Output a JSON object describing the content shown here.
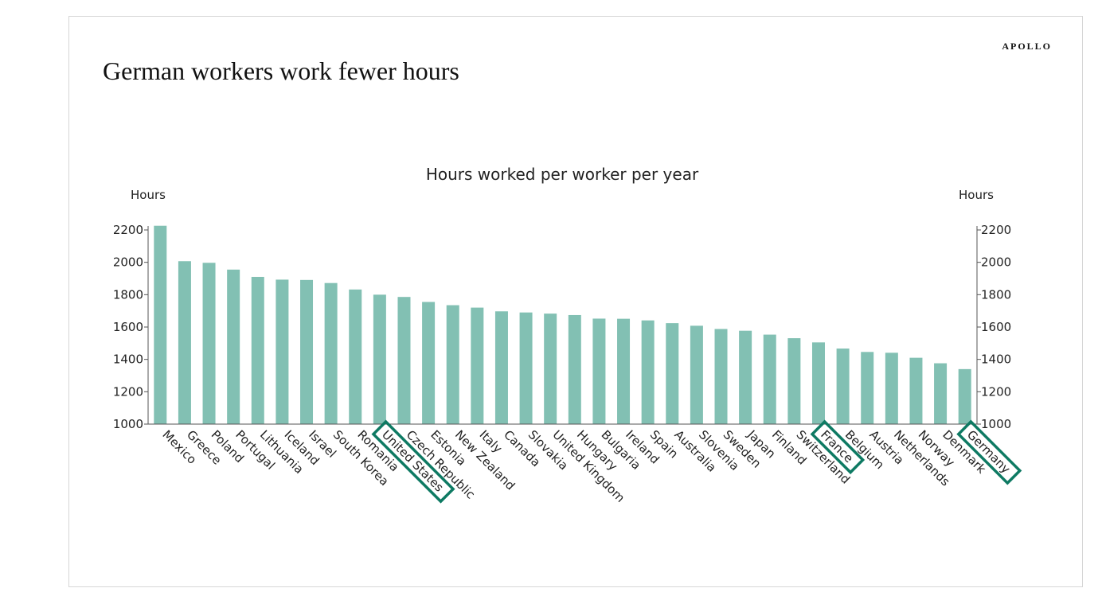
{
  "brand": "APOLLO",
  "title": "German workers work fewer hours",
  "chart_data": {
    "type": "bar",
    "title": "Hours worked per worker per year",
    "ylabel_left": "Hours",
    "ylabel_right": "Hours",
    "ylim": [
      1000,
      2200
    ],
    "yticks": [
      1000,
      1200,
      1400,
      1600,
      1800,
      2000,
      2200
    ],
    "bar_color": "#82c0b3",
    "highlight_color": "#0e7a63",
    "highlighted": [
      "United States",
      "France",
      "Germany"
    ],
    "categories": [
      "Mexico",
      "Greece",
      "Poland",
      "Portugal",
      "Lithuania",
      "Iceland",
      "Israel",
      "South Korea",
      "Romania",
      "United States",
      "Czech Republic",
      "Estonia",
      "New Zealand",
      "Italy",
      "Canada",
      "Slovakia",
      "United Kingdom",
      "Hungary",
      "Bulgaria",
      "Ireland",
      "Spain",
      "Australia",
      "Slovenia",
      "Sweden",
      "Japan",
      "Finland",
      "Switzerland",
      "France",
      "Belgium",
      "Austria",
      "Netherlands",
      "Norway",
      "Denmark",
      "Germany"
    ],
    "values": [
      2226,
      2007,
      1997,
      1955,
      1910,
      1893,
      1891,
      1872,
      1832,
      1800,
      1786,
      1755,
      1735,
      1720,
      1697,
      1690,
      1683,
      1674,
      1652,
      1651,
      1641,
      1624,
      1608,
      1588,
      1577,
      1553,
      1531,
      1505,
      1467,
      1446,
      1441,
      1410,
      1376,
      1340
    ]
  }
}
